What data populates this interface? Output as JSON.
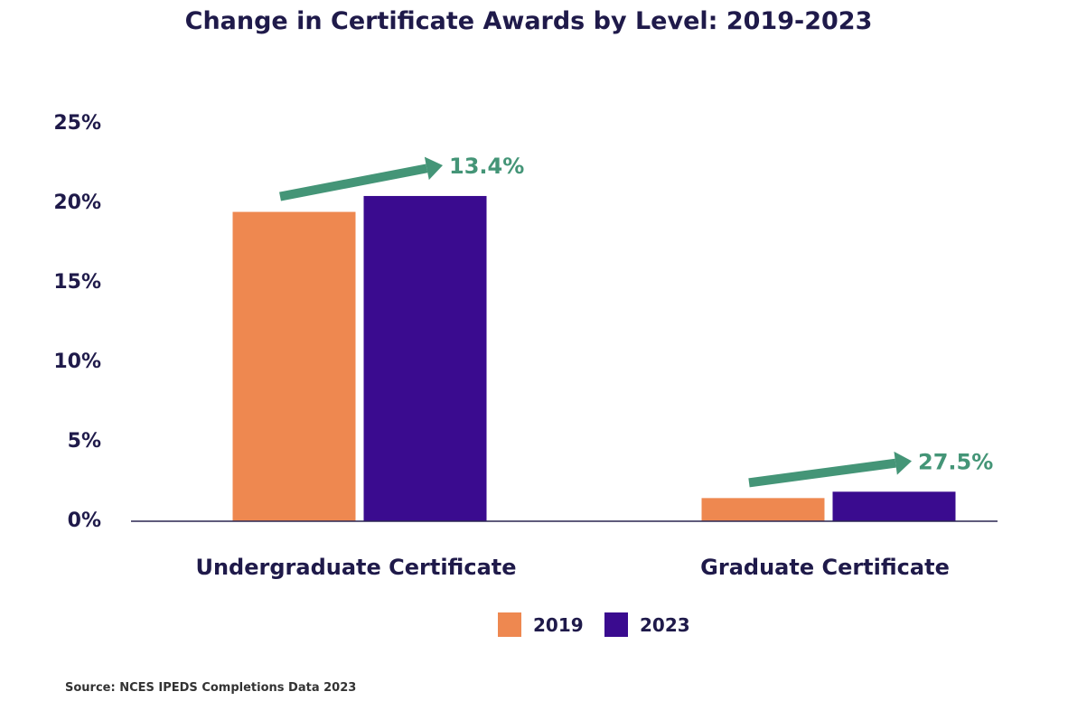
{
  "chart_data": {
    "type": "bar",
    "title": "Change in Certificate Awards by Level: 2019-2023",
    "categories": [
      "Undergraduate Certificate",
      "Graduate Certificate"
    ],
    "series": [
      {
        "name": "2019",
        "values": [
          19.4,
          1.4
        ],
        "color": "#ee8850"
      },
      {
        "name": "2023",
        "values": [
          20.4,
          1.8
        ],
        "color": "#3a0b8f"
      }
    ],
    "annotations": [
      "13.4%",
      "27.5%"
    ],
    "annotation_color": "#449577",
    "ylim": [
      0,
      25
    ],
    "yticks": [
      0,
      5,
      10,
      15,
      20,
      25
    ],
    "ytick_labels": [
      "0%",
      "5%",
      "10%",
      "15%",
      "20%",
      "25%"
    ],
    "xlabel": "",
    "ylabel": "",
    "grid": false,
    "legend": "bottom-center",
    "source": "Source: NCES IPEDS Completions Data 2023"
  }
}
